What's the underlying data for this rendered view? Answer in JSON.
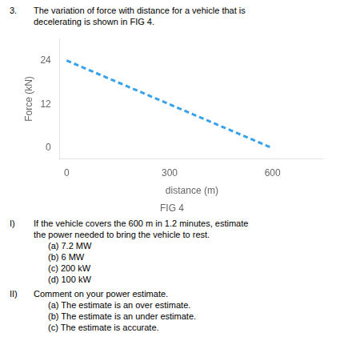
{
  "chart_data": {
    "type": "line",
    "title": "FIG 4",
    "x_label": "distance (m)",
    "y_label": "Force (kN)",
    "x": [
      0,
      600
    ],
    "values": [
      24,
      0
    ],
    "xlim": [
      -20,
      750
    ],
    "ylim": [
      -3,
      30
    ],
    "xticks": [
      0,
      300,
      600
    ],
    "yticks": [
      0,
      12,
      24
    ],
    "line_style": "dashed",
    "marker": "none",
    "grid": false,
    "annotations": [
      {
        "label": "3.",
        "text": "The variation of force with distance for a vehicle that is\ndecelerating is shown in FIG 4.",
        "options": []
      },
      {
        "label": "I)",
        "text": "If the vehicle covers the 600 m in 1.2 minutes, estimate\nthe power needed to bring the vehicle to rest.",
        "options": [
          "(a) 7.2 MW",
          "(b) 6 MW",
          "(c) 200 kW",
          "(d) 100 kW"
        ]
      },
      {
        "label": "II)",
        "text": "Comment on your power estimate.",
        "options": [
          "(a) The estimate is an over estimate.",
          "(b) The estimate is an under estimate.",
          "(c) The estimate is accurate."
        ]
      }
    ]
  }
}
